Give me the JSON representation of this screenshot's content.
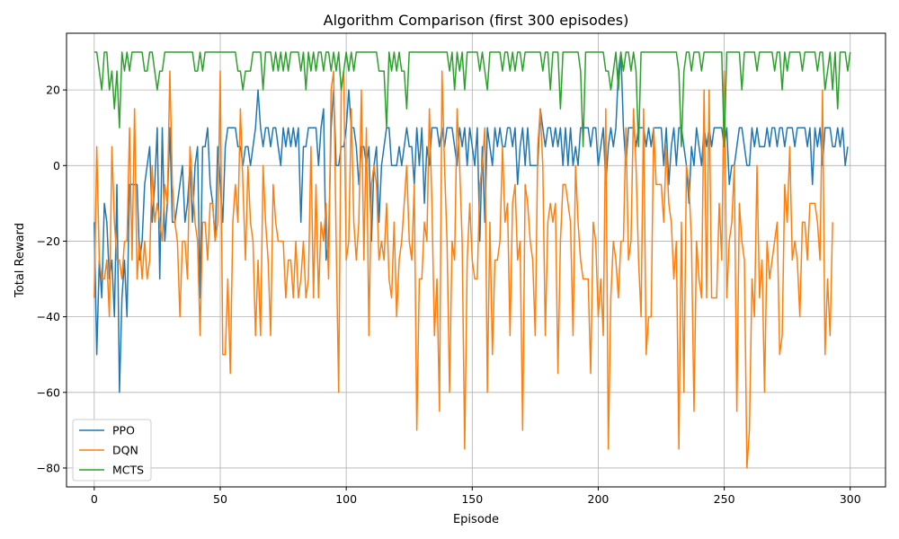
{
  "chart_data": {
    "type": "line",
    "title": "Algorithm Comparison (first 300 episodes)",
    "xlabel": "Episode",
    "ylabel": "Total Reward",
    "xlim": [
      -11,
      314
    ],
    "ylim": [
      -85,
      35
    ],
    "xticks": [
      0,
      50,
      100,
      150,
      200,
      250,
      300
    ],
    "yticks": [
      -80,
      -60,
      -40,
      -20,
      0,
      20
    ],
    "grid": true,
    "legend_position": "lower-left",
    "series": [
      {
        "name": "PPO",
        "color": "#1f77b4",
        "values": [
          -15,
          -50,
          -25,
          -35,
          -10,
          -15,
          -30,
          -25,
          -40,
          -5,
          -60,
          -35,
          -25,
          -40,
          -5,
          -5,
          -5,
          -5,
          -25,
          -20,
          -5,
          0,
          5,
          -15,
          -5,
          10,
          -30,
          10,
          -20,
          -10,
          10,
          -15,
          -15,
          -10,
          -5,
          0,
          -15,
          -10,
          0,
          -15,
          0,
          5,
          -35,
          5,
          5,
          10,
          -5,
          -10,
          -20,
          5,
          -5,
          -15,
          5,
          10,
          10,
          10,
          10,
          5,
          5,
          0,
          5,
          5,
          0,
          5,
          10,
          20,
          10,
          5,
          10,
          10,
          5,
          10,
          10,
          5,
          0,
          10,
          5,
          10,
          5,
          10,
          5,
          10,
          -15,
          5,
          5,
          10,
          10,
          10,
          10,
          0,
          10,
          15,
          -25,
          -20,
          10,
          20,
          0,
          0,
          5,
          5,
          10,
          20,
          10,
          10,
          5,
          -5,
          5,
          5,
          0,
          5,
          -20,
          0,
          5,
          -15,
          0,
          5,
          10,
          10,
          0,
          0,
          0,
          5,
          0,
          5,
          10,
          5,
          5,
          -5,
          10,
          0,
          10,
          -10,
          5,
          0,
          10,
          10,
          10,
          5,
          10,
          5,
          10,
          10,
          10,
          5,
          0,
          10,
          5,
          10,
          0,
          10,
          5,
          0,
          10,
          -20,
          5,
          -15,
          10,
          5,
          0,
          10,
          5,
          10,
          5,
          5,
          10,
          10,
          5,
          10,
          -5,
          5,
          10,
          0,
          10,
          0,
          0,
          0,
          0,
          15,
          10,
          5,
          10,
          10,
          5,
          10,
          5,
          10,
          0,
          10,
          0,
          10,
          0,
          5,
          0,
          10,
          10,
          10,
          10,
          5,
          10,
          10,
          0,
          5,
          10,
          -5,
          5,
          10,
          5,
          10,
          25,
          30,
          10,
          0,
          10,
          10,
          10,
          5,
          10,
          10,
          10,
          5,
          10,
          5,
          10,
          10,
          10,
          10,
          0,
          10,
          -5,
          5,
          10,
          0,
          10,
          10,
          5,
          0,
          -10,
          5,
          0,
          10,
          5,
          0,
          10,
          5,
          10,
          5,
          10,
          10,
          10,
          10,
          5,
          10,
          -5,
          0,
          0,
          5,
          10,
          10,
          5,
          0,
          0,
          10,
          5,
          10,
          5,
          5,
          5,
          10,
          5,
          10,
          10,
          5,
          10,
          10,
          5,
          10,
          10,
          10,
          5,
          10,
          10,
          10,
          10,
          5,
          10,
          -5,
          10,
          5,
          10,
          0,
          10,
          10,
          10,
          5,
          5,
          10,
          5,
          10,
          0,
          5
        ]
      },
      {
        "name": "DQN",
        "color": "#ff7f0e",
        "values": [
          -35,
          5,
          -25,
          -30,
          -30,
          -25,
          -40,
          5,
          -15,
          -25,
          -25,
          -30,
          -20,
          -20,
          10,
          -25,
          15,
          -30,
          -20,
          -30,
          -20,
          -30,
          -25,
          0,
          -15,
          -10,
          -15,
          -20,
          -5,
          -10,
          25,
          -5,
          -15,
          -20,
          -40,
          -20,
          -20,
          -30,
          5,
          -5,
          -15,
          -20,
          -45,
          -15,
          -15,
          -25,
          -10,
          -10,
          -20,
          -15,
          25,
          -50,
          -50,
          -30,
          -55,
          -15,
          -5,
          -15,
          15,
          -5,
          -25,
          0,
          -15,
          -20,
          -45,
          -25,
          -45,
          0,
          -15,
          -25,
          -45,
          -5,
          -15,
          -20,
          -20,
          -20,
          -35,
          -25,
          -25,
          -35,
          -20,
          -35,
          -30,
          -20,
          -35,
          -30,
          5,
          -35,
          -5,
          -35,
          -15,
          -20,
          -10,
          -30,
          20,
          25,
          -20,
          -60,
          20,
          25,
          -25,
          -20,
          15,
          -15,
          -25,
          -15,
          20,
          -25,
          10,
          -45,
          -5,
          0,
          -5,
          -25,
          -20,
          -25,
          -10,
          -30,
          -35,
          -15,
          -40,
          -25,
          -20,
          -10,
          0,
          -20,
          -25,
          -5,
          -70,
          -30,
          -30,
          -15,
          -20,
          15,
          -10,
          -45,
          -30,
          -65,
          25,
          0,
          -20,
          -60,
          -20,
          -25,
          15,
          0,
          -20,
          -75,
          -25,
          -10,
          -25,
          -30,
          -30,
          -5,
          0,
          10,
          -60,
          -15,
          -50,
          -25,
          -25,
          -20,
          5,
          -15,
          -10,
          -45,
          -10,
          -5,
          -25,
          -20,
          -70,
          -5,
          -10,
          -20,
          -25,
          -45,
          5,
          15,
          0,
          -45,
          -15,
          -10,
          -15,
          -10,
          -55,
          -20,
          -5,
          -5,
          -10,
          -15,
          -45,
          0,
          -15,
          -25,
          -30,
          -30,
          -30,
          -55,
          -15,
          -20,
          -40,
          -30,
          -45,
          15,
          -75,
          -35,
          -20,
          -25,
          -35,
          -20,
          -20,
          10,
          -25,
          -20,
          15,
          0,
          -25,
          -40,
          15,
          -50,
          -40,
          -40,
          10,
          -5,
          -5,
          -5,
          -15,
          5,
          -10,
          -15,
          -30,
          -20,
          -75,
          -15,
          -60,
          0,
          -5,
          -20,
          -65,
          -20,
          -30,
          -35,
          20,
          -35,
          20,
          -35,
          -35,
          -35,
          -10,
          -25,
          25,
          -35,
          -20,
          -15,
          0,
          -65,
          -10,
          -20,
          -25,
          -80,
          -70,
          -30,
          -40,
          0,
          -35,
          -25,
          -60,
          -20,
          -30,
          -25,
          -20,
          -15,
          -50,
          -45,
          -5,
          -15,
          5,
          -25,
          -20,
          -25,
          -40,
          -15,
          -15,
          -25,
          -10,
          -10,
          -10,
          -15,
          -25,
          20,
          -50,
          -30,
          -45,
          -15
        ]
      },
      {
        "name": "MCTS",
        "color": "#2ca02c",
        "values": [
          30,
          30,
          25,
          20,
          30,
          30,
          20,
          25,
          15,
          25,
          10,
          30,
          25,
          30,
          25,
          30,
          30,
          30,
          30,
          30,
          25,
          25,
          30,
          30,
          25,
          20,
          25,
          25,
          30,
          30,
          30,
          30,
          30,
          30,
          30,
          30,
          30,
          30,
          30,
          30,
          25,
          25,
          30,
          25,
          30,
          30,
          30,
          30,
          30,
          30,
          30,
          30,
          30,
          30,
          30,
          30,
          30,
          25,
          25,
          20,
          25,
          25,
          25,
          30,
          30,
          30,
          30,
          20,
          30,
          30,
          30,
          25,
          30,
          25,
          30,
          25,
          30,
          25,
          30,
          30,
          30,
          30,
          25,
          30,
          20,
          30,
          25,
          30,
          25,
          30,
          30,
          25,
          30,
          30,
          25,
          30,
          25,
          30,
          20,
          25,
          30,
          25,
          30,
          25,
          30,
          30,
          30,
          30,
          30,
          30,
          30,
          30,
          30,
          25,
          25,
          25,
          10,
          30,
          25,
          30,
          25,
          30,
          25,
          25,
          15,
          30,
          30,
          30,
          30,
          30,
          30,
          30,
          30,
          30,
          30,
          30,
          30,
          30,
          30,
          30,
          30,
          25,
          30,
          20,
          30,
          25,
          30,
          20,
          30,
          30,
          30,
          30,
          30,
          25,
          30,
          25,
          20,
          30,
          30,
          30,
          30,
          30,
          25,
          30,
          30,
          25,
          30,
          25,
          30,
          30,
          25,
          30,
          30,
          30,
          30,
          30,
          30,
          30,
          25,
          30,
          30,
          20,
          30,
          30,
          30,
          15,
          30,
          30,
          30,
          30,
          30,
          30,
          30,
          25,
          5,
          30,
          30,
          30,
          30,
          30,
          30,
          30,
          30,
          25,
          25,
          20,
          25,
          30,
          20,
          30,
          25,
          30,
          30,
          25,
          30,
          25,
          5,
          30,
          30,
          30,
          30,
          30,
          30,
          30,
          30,
          30,
          30,
          30,
          30,
          30,
          30,
          30,
          25,
          5,
          25,
          30,
          30,
          25,
          30,
          30,
          30,
          25,
          30,
          30,
          30,
          30,
          30,
          30,
          30,
          30,
          5,
          30,
          30,
          30,
          30,
          30,
          30,
          20,
          30,
          30,
          30,
          30,
          30,
          25,
          30,
          30,
          30,
          30,
          30,
          30,
          25,
          30,
          30,
          20,
          30,
          25,
          30,
          30,
          30,
          30,
          30,
          25,
          30,
          30,
          30,
          30,
          30,
          25,
          30,
          30,
          20,
          25,
          30,
          20,
          30,
          15,
          30,
          30,
          30,
          25,
          30
        ]
      }
    ]
  }
}
